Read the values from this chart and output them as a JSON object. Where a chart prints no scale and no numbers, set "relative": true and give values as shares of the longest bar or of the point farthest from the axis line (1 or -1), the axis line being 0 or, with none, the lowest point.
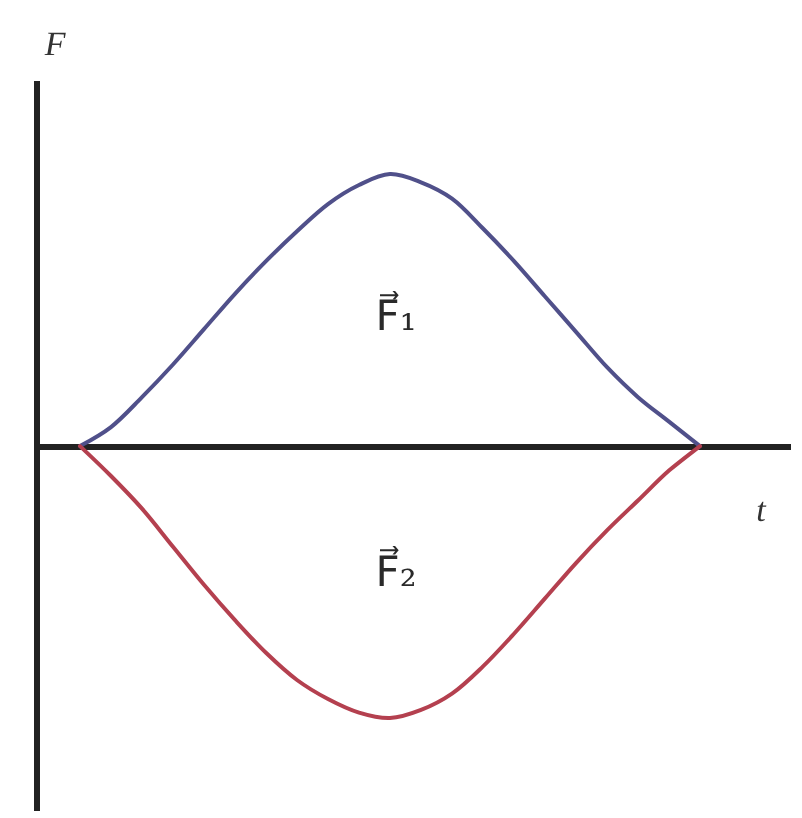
{
  "chart_data": {
    "type": "line",
    "xlabel": "t",
    "ylabel": "F",
    "relative": true,
    "categories": [
      null,
      null,
      null,
      null,
      null,
      null,
      null,
      null,
      null,
      null,
      null,
      null,
      null,
      null,
      null,
      null,
      null,
      null,
      null,
      null,
      null
    ],
    "series": [
      {
        "name": "F⃗₁",
        "color": "#50508a",
        "values": [
          0,
          0.07,
          0.18,
          0.3,
          0.43,
          0.56,
          0.68,
          0.79,
          0.89,
          0.96,
          1,
          0.97,
          0.91,
          0.8,
          0.68,
          0.55,
          0.42,
          0.29,
          0.18,
          0.09,
          0
        ]
      },
      {
        "name": "F⃗₂",
        "color": "#b4404f",
        "values": [
          0,
          -0.11,
          -0.23,
          -0.37,
          -0.51,
          -0.64,
          -0.76,
          -0.86,
          -0.93,
          -0.98,
          -1,
          -0.97,
          -0.91,
          -0.81,
          -0.69,
          -0.56,
          -0.43,
          -0.31,
          -0.2,
          -0.09,
          0
        ]
      }
    ]
  }
}
